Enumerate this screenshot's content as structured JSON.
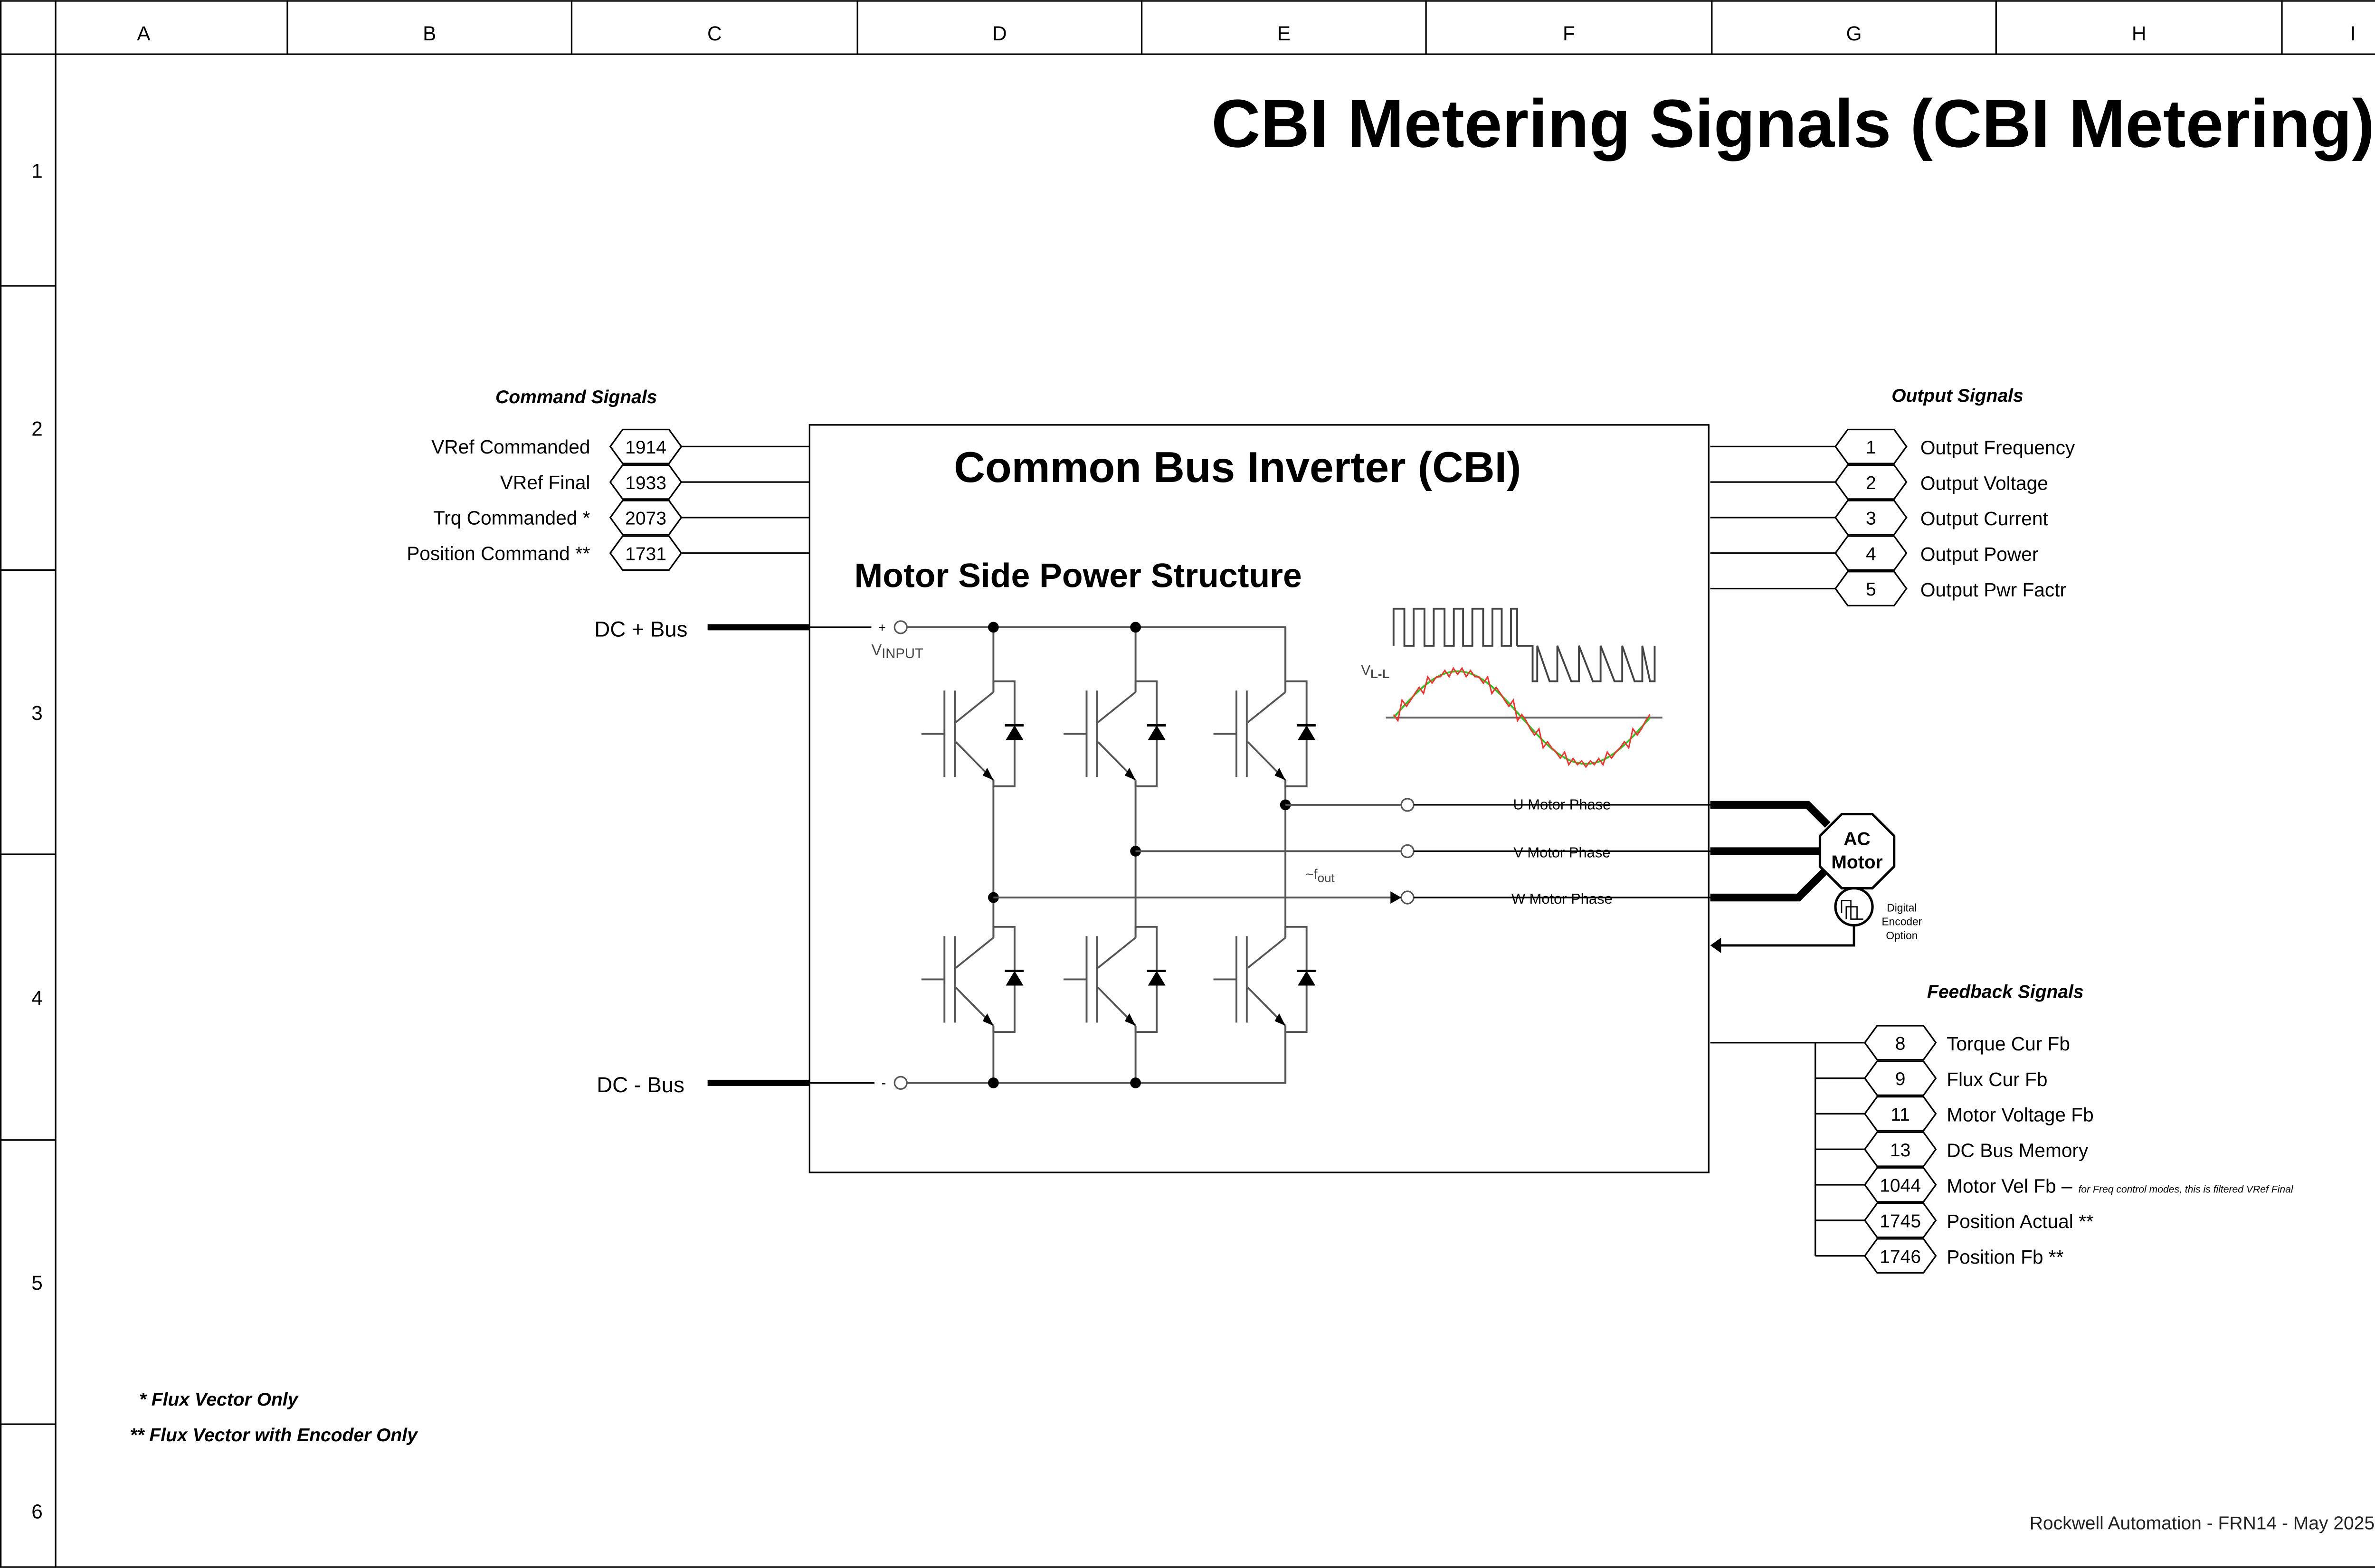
{
  "title": "CBI Metering Signals (CBI Metering)",
  "grid": {
    "columns": [
      "A",
      "B",
      "C",
      "D",
      "E",
      "F",
      "G",
      "H",
      "I"
    ],
    "rows": [
      "1",
      "2",
      "3",
      "4",
      "5",
      "6"
    ]
  },
  "inverter": {
    "title": "Common Bus Inverter (CBI)",
    "subtitle": "Motor Side Power Structure",
    "v_input": "V",
    "v_input_sub": "INPUT",
    "plus": "+",
    "minus": "-",
    "v_ll": "V",
    "v_ll_sub": "L-L",
    "f_out": "~f",
    "f_out_sub": "out",
    "phases": [
      "U Motor Phase",
      "V Motor Phase",
      "W Motor Phase"
    ]
  },
  "dc_plus": "DC + Bus",
  "dc_minus": "DC - Bus",
  "motor": {
    "line1": "AC",
    "line2": "Motor"
  },
  "encoder": {
    "line1": "Digital",
    "line2": "Encoder",
    "line3": "Option"
  },
  "command_signals": {
    "header": "Command Signals",
    "items": [
      {
        "param": "1914",
        "label": "VRef Commanded"
      },
      {
        "param": "1933",
        "label": "VRef Final"
      },
      {
        "param": "2073",
        "label": "Trq Commanded *"
      },
      {
        "param": "1731",
        "label": "Position Command **"
      }
    ]
  },
  "output_signals": {
    "header": "Output Signals",
    "items": [
      {
        "param": "1",
        "label": "Output Frequency"
      },
      {
        "param": "2",
        "label": "Output Voltage"
      },
      {
        "param": "3",
        "label": "Output Current"
      },
      {
        "param": "4",
        "label": "Output Power"
      },
      {
        "param": "5",
        "label": "Output Pwr Factr"
      }
    ]
  },
  "feedback_signals": {
    "header": "Feedback Signals",
    "items": [
      {
        "param": "8",
        "label": "Torque Cur Fb",
        "note": ""
      },
      {
        "param": "9",
        "label": "Flux Cur Fb",
        "note": ""
      },
      {
        "param": "11",
        "label": "Motor Voltage Fb",
        "note": ""
      },
      {
        "param": "13",
        "label": "DC Bus Memory",
        "note": ""
      },
      {
        "param": "1044",
        "label": "Motor Vel Fb –",
        "note": "for Freq control modes, this is filtered VRef Final"
      },
      {
        "param": "1745",
        "label": "Position Actual **",
        "note": ""
      },
      {
        "param": "1746",
        "label": "Position Fb **",
        "note": ""
      }
    ]
  },
  "footnotes": [
    "* Flux Vector Only",
    "** Flux Vector with Encoder Only"
  ],
  "footer": "Rockwell Automation - FRN14 - May 2025",
  "colors": {
    "wave_stepped": "#ff2a2a",
    "wave_sine": "#22cc22"
  }
}
